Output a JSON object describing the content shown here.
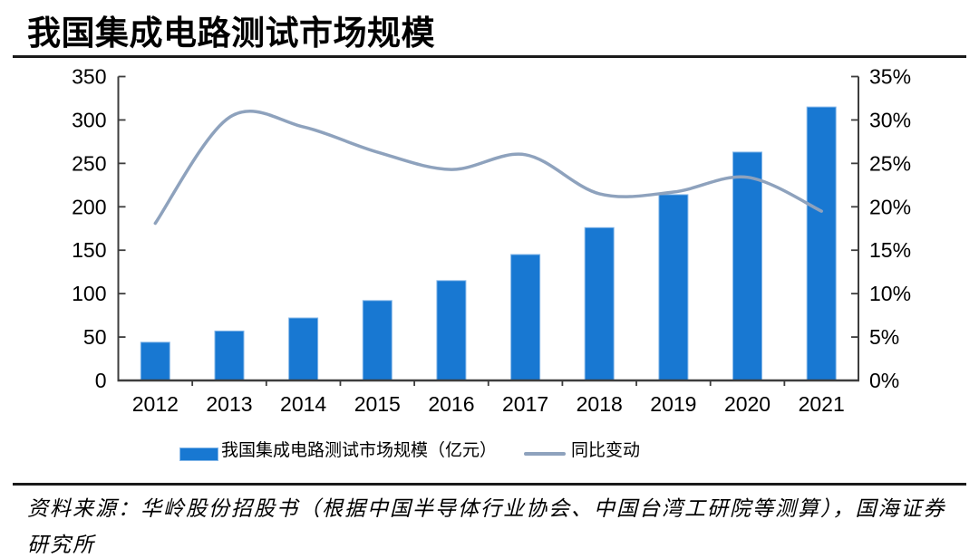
{
  "title": "我国集成电路测试市场规模",
  "source_note": "资料来源：华岭股份招股书（根据中国半导体行业协会、中国台湾工研院等测算），国海证券研究所",
  "legend": [
    {
      "label": "我国集成电路测试市场规模（亿元）",
      "swatch": "bar-swatch"
    },
    {
      "label": "同比变动",
      "swatch": "line-swatch"
    }
  ],
  "colors": {
    "bar": "#1878d2",
    "bar_border": "#85b7e8",
    "line": "#8ea2bd",
    "axis": "#3d3d3d",
    "divider": "#1a1a1a"
  },
  "chart_data": {
    "type": "bar",
    "title": "我国集成电路测试市场规模",
    "categories": [
      "2012",
      "2013",
      "2014",
      "2015",
      "2016",
      "2017",
      "2018",
      "2019",
      "2020",
      "2021"
    ],
    "series": [
      {
        "name": "我国集成电路测试市场规模（亿元）",
        "type": "bar",
        "axis": "left",
        "values": [
          44,
          57,
          72,
          92,
          115,
          145,
          176,
          214,
          263,
          315
        ]
      },
      {
        "name": "同比变动",
        "type": "line",
        "axis": "right",
        "values_percent": [
          18.1,
          30.3,
          29.2,
          26.3,
          24.3,
          26.0,
          21.5,
          21.7,
          23.4,
          19.5
        ]
      }
    ],
    "left_axis": {
      "min": 0,
      "max": 350,
      "step": 50,
      "ticks": [
        "0",
        "50",
        "100",
        "150",
        "200",
        "250",
        "300",
        "350"
      ]
    },
    "right_axis": {
      "min": 0,
      "max": 35,
      "step": 5,
      "ticks": [
        "0%",
        "5%",
        "10%",
        "15%",
        "20%",
        "25%",
        "30%",
        "35%"
      ]
    },
    "grid": false,
    "legend_position": "bottom"
  }
}
